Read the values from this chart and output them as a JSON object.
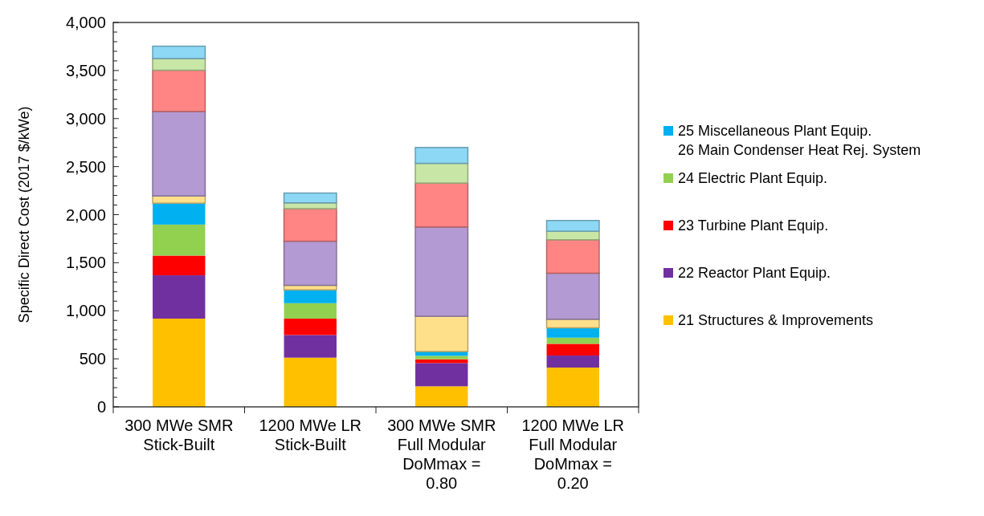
{
  "chart_data": {
    "type": "bar",
    "stacked": true,
    "ylabel": "Specific Direct Cost (2017 $/kWe)",
    "categories": [
      "300 MWe SMR\nStick-Built",
      "1200 MWe LR\nStick-Built",
      "300 MWe SMR\nFull Modular\nDoMmax =\n0.80",
      "1200 MWe LR\nFull Modular\nDoMmax =\n0.20"
    ],
    "series": [
      {
        "name": "21 Structures & Improvements",
        "color": "#ffc000",
        "values": [
          918,
          512,
          214,
          409
        ]
      },
      {
        "name": "22 Reactor Plant Equip.",
        "color": "#7030a0",
        "values": [
          451,
          236,
          242,
          125
        ]
      },
      {
        "name": "23 Turbine Plant Equip.",
        "color": "#ff0000",
        "values": [
          205,
          170,
          39,
          122
        ]
      },
      {
        "name": "24 Electric Plant Equip.",
        "color": "#92d050",
        "values": [
          323,
          161,
          36,
          64
        ]
      },
      {
        "name": "25 Miscellaneous Plant Equip.\n26 Main Condenser Heat Rej. System",
        "color": "#00b0f0",
        "values": [
          223,
          139,
          45,
          103
        ]
      },
      {
        "color": "#ffe08a",
        "values": [
          75,
          47,
          367,
          89
        ]
      },
      {
        "color": "#b49ad2",
        "values": [
          879,
          459,
          929,
          479
        ]
      },
      {
        "color": "#ff8585",
        "values": [
          429,
          338,
          457,
          348
        ]
      },
      {
        "color": "#c8e6a6",
        "values": [
          122,
          61,
          205,
          89
        ]
      },
      {
        "color": "#8dd8f5",
        "values": [
          128,
          102,
          165,
          111
        ]
      }
    ],
    "ylim": [
      0,
      4000
    ],
    "yticks": [
      0,
      {
        "value": 100,
        "label": null
      },
      {
        "value": 200,
        "label": null
      },
      {
        "value": 300,
        "label": null
      },
      {
        "value": 400,
        "label": null
      },
      {
        "value": 500,
        "label": "500"
      },
      {
        "value": 600,
        "label": null
      },
      {
        "value": 700,
        "label": null
      },
      {
        "value": 800,
        "label": null
      },
      {
        "value": 900,
        "label": null
      },
      {
        "value": 1000,
        "label": "1,000"
      },
      {
        "value": 1100,
        "label": null
      },
      {
        "value": 1200,
        "label": null
      },
      {
        "value": 1300,
        "label": null
      },
      {
        "value": 1400,
        "label": null
      },
      {
        "value": 1500,
        "label": "1,500"
      },
      {
        "value": 1600,
        "label": null
      },
      {
        "value": 1700,
        "label": null
      },
      {
        "value": 1800,
        "label": null
      },
      {
        "value": 1900,
        "label": null
      },
      {
        "value": 2000,
        "label": "2,000"
      },
      {
        "value": 2100,
        "label": null
      },
      {
        "value": 2200,
        "label": null
      },
      {
        "value": 2300,
        "label": null
      },
      {
        "value": 2400,
        "label": null
      },
      {
        "value": 2500,
        "label": "2,500"
      },
      {
        "value": 2600,
        "label": null
      },
      {
        "value": 2700,
        "label": null
      },
      {
        "value": 2800,
        "label": null
      },
      {
        "value": 2900,
        "label": null
      },
      {
        "value": 3000,
        "label": "3,000"
      },
      {
        "value": 3100,
        "label": null
      },
      {
        "value": 3200,
        "label": null
      },
      {
        "value": 3300,
        "label": null
      },
      {
        "value": 3400,
        "label": null
      },
      {
        "value": 3500,
        "label": "3,500"
      },
      {
        "value": 3600,
        "label": null
      },
      {
        "value": 3700,
        "label": null
      },
      {
        "value": 3800,
        "label": null
      },
      {
        "value": 3900,
        "label": null
      },
      {
        "value": 4000,
        "label": "4,000"
      }
    ],
    "grid": false,
    "legend": "right"
  }
}
